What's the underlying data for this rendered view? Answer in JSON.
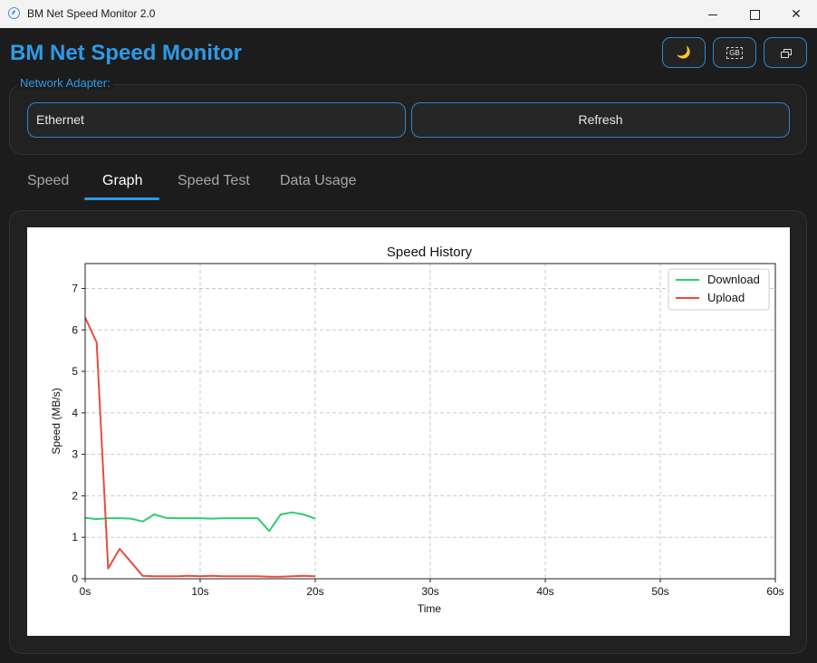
{
  "window": {
    "title": "BM Net Speed Monitor 2.0",
    "minimize": "—",
    "maximize": "☐",
    "close": "✕"
  },
  "header": {
    "title": "BM Net Speed Monitor",
    "theme_icon": "🌙",
    "units_label": "GB"
  },
  "adapter": {
    "label": "Network Adapter:",
    "selected": "Ethernet",
    "refresh_label": "Refresh"
  },
  "tabs": [
    {
      "label": "Speed"
    },
    {
      "label": "Graph",
      "active": true
    },
    {
      "label": "Speed Test"
    },
    {
      "label": "Data Usage"
    }
  ],
  "colors": {
    "accent": "#2e9ae6",
    "download": "#2ecc71",
    "upload": "#e74c3c"
  },
  "chart_data": {
    "type": "line",
    "title": "Speed History",
    "xlabel": "Time",
    "ylabel": "Speed (MB/s)",
    "xlim": [
      0,
      60
    ],
    "ylim": [
      0,
      7.6
    ],
    "x_ticks": [
      0,
      10,
      20,
      30,
      40,
      50,
      60
    ],
    "x_tick_labels": [
      "0s",
      "10s",
      "20s",
      "30s",
      "40s",
      "50s",
      "60s"
    ],
    "y_ticks": [
      0,
      1,
      2,
      3,
      4,
      5,
      6,
      7
    ],
    "y_tick_labels": [
      "0",
      "1",
      "2",
      "3",
      "4",
      "5",
      "6",
      "7"
    ],
    "grid": true,
    "legend_position": "top-right",
    "series": [
      {
        "name": "Download",
        "color": "#2ecc71",
        "x": [
          0,
          1,
          2,
          3,
          4,
          5,
          6,
          7,
          8,
          9,
          10,
          11,
          12,
          13,
          14,
          15,
          16,
          17,
          18,
          19,
          20
        ],
        "y": [
          1.47,
          1.44,
          1.46,
          1.46,
          1.45,
          1.38,
          1.55,
          1.47,
          1.46,
          1.46,
          1.46,
          1.45,
          1.46,
          1.46,
          1.46,
          1.46,
          1.15,
          1.55,
          1.6,
          1.55,
          1.45
        ]
      },
      {
        "name": "Upload",
        "color": "#e74c3c",
        "x": [
          0,
          1,
          2,
          3,
          4,
          5,
          6,
          7,
          8,
          9,
          10,
          11,
          12,
          13,
          14,
          15,
          16,
          17,
          18,
          19,
          20
        ],
        "y": [
          6.3,
          5.7,
          0.25,
          0.72,
          0.4,
          0.07,
          0.06,
          0.06,
          0.06,
          0.07,
          0.06,
          0.07,
          0.06,
          0.06,
          0.06,
          0.06,
          0.05,
          0.05,
          0.06,
          0.07,
          0.06
        ]
      }
    ]
  }
}
